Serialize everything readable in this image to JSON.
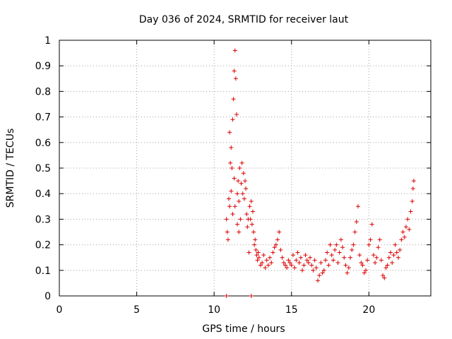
{
  "chart_data": {
    "type": "scatter",
    "title": "Day 036 of 2024, SRMTID for receiver laut",
    "xlabel": "GPS time / hours",
    "ylabel": "SRMTID / TECUs",
    "xlim": [
      0,
      24
    ],
    "ylim": [
      0,
      1
    ],
    "xticks": [
      0,
      5,
      10,
      15,
      20
    ],
    "xtick_labels": [
      "0",
      "5",
      "10",
      "15",
      "20"
    ],
    "yticks": [
      0,
      0.1,
      0.2,
      0.3,
      0.4,
      0.5,
      0.6,
      0.7,
      0.8,
      0.9,
      1
    ],
    "ytick_labels": [
      "0",
      "0.1",
      "0.2",
      "0.3",
      "0.4",
      "0.5",
      "0.6",
      "0.7",
      "0.8",
      "0.9",
      "1"
    ],
    "grid": true,
    "marker": "+",
    "colors": {
      "series": "#dd0000",
      "grid": "#a0a0a0",
      "axis": "#000000"
    },
    "series": [
      {
        "name": "SRMTID",
        "x": [
          10.8,
          10.85,
          10.9,
          10.95,
          11.0,
          11.0,
          11.05,
          11.1,
          11.1,
          11.15,
          11.2,
          11.2,
          11.25,
          11.3,
          11.3,
          11.35,
          11.35,
          11.4,
          11.45,
          11.5,
          11.5,
          11.55,
          11.6,
          11.6,
          11.65,
          11.7,
          11.75,
          11.8,
          11.85,
          11.9,
          11.95,
          12.0,
          12.05,
          12.1,
          12.15,
          12.2,
          12.25,
          12.3,
          12.35,
          12.4,
          12.45,
          12.5,
          12.55,
          12.6,
          12.65,
          12.7,
          12.75,
          12.8,
          12.85,
          12.9,
          13.0,
          13.1,
          13.2,
          13.3,
          13.4,
          13.5,
          13.6,
          13.7,
          13.8,
          13.9,
          14.0,
          14.1,
          14.2,
          14.3,
          14.4,
          14.5,
          14.6,
          14.7,
          14.8,
          14.9,
          15.0,
          15.1,
          15.2,
          15.3,
          15.4,
          15.5,
          15.6,
          15.7,
          15.8,
          15.9,
          16.0,
          16.1,
          16.2,
          16.3,
          16.4,
          16.5,
          16.6,
          16.7,
          16.8,
          16.9,
          17.0,
          17.1,
          17.2,
          17.3,
          17.4,
          17.5,
          17.6,
          17.7,
          17.8,
          17.9,
          18.0,
          18.1,
          18.2,
          18.3,
          18.4,
          18.5,
          18.6,
          18.7,
          18.8,
          18.9,
          19.0,
          19.1,
          19.2,
          19.3,
          19.4,
          19.5,
          19.6,
          19.7,
          19.8,
          19.9,
          20.0,
          20.1,
          20.2,
          20.3,
          20.4,
          20.5,
          20.6,
          20.7,
          20.8,
          20.9,
          21.0,
          21.1,
          21.2,
          21.3,
          21.4,
          21.5,
          21.6,
          21.7,
          21.8,
          21.9,
          22.0,
          22.1,
          22.2,
          22.3,
          22.4,
          22.5,
          22.6,
          22.7,
          22.8,
          22.85,
          22.9,
          10.8,
          12.4
        ],
        "y": [
          0.3,
          0.25,
          0.22,
          0.38,
          0.35,
          0.64,
          0.52,
          0.58,
          0.41,
          0.5,
          0.69,
          0.32,
          0.77,
          0.88,
          0.46,
          0.96,
          0.35,
          0.85,
          0.71,
          0.4,
          0.28,
          0.45,
          0.37,
          0.25,
          0.5,
          0.3,
          0.44,
          0.52,
          0.4,
          0.48,
          0.38,
          0.45,
          0.42,
          0.32,
          0.27,
          0.3,
          0.17,
          0.35,
          0.3,
          0.37,
          0.28,
          0.33,
          0.25,
          0.2,
          0.22,
          0.18,
          0.16,
          0.14,
          0.17,
          0.15,
          0.12,
          0.13,
          0.16,
          0.11,
          0.14,
          0.12,
          0.15,
          0.13,
          0.17,
          0.19,
          0.2,
          0.22,
          0.25,
          0.18,
          0.15,
          0.13,
          0.12,
          0.11,
          0.14,
          0.13,
          0.12,
          0.16,
          0.11,
          0.14,
          0.17,
          0.13,
          0.15,
          0.1,
          0.12,
          0.16,
          0.14,
          0.13,
          0.15,
          0.12,
          0.1,
          0.14,
          0.11,
          0.06,
          0.08,
          0.13,
          0.09,
          0.1,
          0.14,
          0.17,
          0.12,
          0.2,
          0.16,
          0.14,
          0.18,
          0.2,
          0.13,
          0.17,
          0.22,
          0.19,
          0.15,
          0.12,
          0.09,
          0.11,
          0.15,
          0.18,
          0.2,
          0.25,
          0.29,
          0.35,
          0.16,
          0.13,
          0.12,
          0.09,
          0.1,
          0.14,
          0.2,
          0.22,
          0.28,
          0.16,
          0.13,
          0.15,
          0.19,
          0.22,
          0.14,
          0.08,
          0.07,
          0.11,
          0.12,
          0.15,
          0.17,
          0.13,
          0.16,
          0.2,
          0.17,
          0.15,
          0.18,
          0.22,
          0.25,
          0.23,
          0.27,
          0.3,
          0.26,
          0.33,
          0.37,
          0.42,
          0.45,
          0.0,
          0.0
        ]
      }
    ]
  }
}
